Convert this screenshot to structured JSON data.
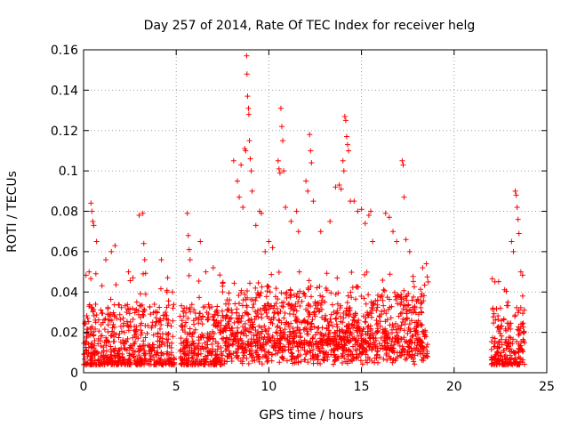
{
  "chart_data": {
    "type": "scatter",
    "title": "Day 257 of 2014, Rate Of TEC Index for receiver helg",
    "xlabel": "GPS time / hours",
    "ylabel": "ROTI / TECUs",
    "xlim": [
      0,
      25
    ],
    "ylim": [
      0,
      0.16
    ],
    "xticks": [
      0,
      5,
      10,
      15,
      20,
      25
    ],
    "yticks": [
      0,
      0.02,
      0.04,
      0.06,
      0.08,
      0.1,
      0.12,
      0.14,
      0.16
    ],
    "ytick_labels": [
      "0",
      "0.02",
      "0.04",
      "0.06",
      "0.08",
      "0.1",
      "0.12",
      "0.14",
      "0.16"
    ],
    "grid": true,
    "marker": "+",
    "marker_color": "#ff0000",
    "segments": [
      {
        "t_start": 0.0,
        "t_end": 4.9
      },
      {
        "t_start": 5.2,
        "t_end": 18.6
      },
      {
        "t_start": 22.0,
        "t_end": 23.8
      }
    ],
    "points": [
      [
        0.4,
        0.084
      ],
      [
        0.45,
        0.08
      ],
      [
        0.5,
        0.075
      ],
      [
        0.55,
        0.073
      ],
      [
        0.3,
        0.05
      ],
      [
        0.7,
        0.065
      ],
      [
        1.2,
        0.056
      ],
      [
        1.5,
        0.06
      ],
      [
        1.7,
        0.063
      ],
      [
        3.0,
        0.078
      ],
      [
        3.2,
        0.079
      ],
      [
        3.25,
        0.064
      ],
      [
        3.3,
        0.056
      ],
      [
        4.2,
        0.056
      ],
      [
        4.5,
        0.04
      ],
      [
        4.8,
        0.04
      ],
      [
        5.6,
        0.079
      ],
      [
        5.65,
        0.068
      ],
      [
        5.7,
        0.061
      ],
      [
        5.75,
        0.056
      ],
      [
        6.3,
        0.065
      ],
      [
        6.6,
        0.05
      ],
      [
        7.0,
        0.052
      ],
      [
        8.1,
        0.105
      ],
      [
        8.3,
        0.095
      ],
      [
        8.4,
        0.087
      ],
      [
        8.5,
        0.103
      ],
      [
        8.6,
        0.082
      ],
      [
        8.7,
        0.111
      ],
      [
        8.75,
        0.11
      ],
      [
        8.8,
        0.157
      ],
      [
        8.82,
        0.148
      ],
      [
        8.85,
        0.137
      ],
      [
        8.9,
        0.131
      ],
      [
        8.92,
        0.128
      ],
      [
        8.95,
        0.115
      ],
      [
        9.0,
        0.106
      ],
      [
        9.05,
        0.1
      ],
      [
        9.1,
        0.09
      ],
      [
        9.3,
        0.073
      ],
      [
        9.5,
        0.08
      ],
      [
        9.6,
        0.079
      ],
      [
        9.8,
        0.06
      ],
      [
        10.0,
        0.065
      ],
      [
        10.2,
        0.062
      ],
      [
        10.5,
        0.105
      ],
      [
        10.55,
        0.101
      ],
      [
        10.6,
        0.099
      ],
      [
        10.65,
        0.131
      ],
      [
        10.7,
        0.122
      ],
      [
        10.75,
        0.115
      ],
      [
        10.8,
        0.1
      ],
      [
        10.9,
        0.082
      ],
      [
        11.2,
        0.075
      ],
      [
        11.5,
        0.08
      ],
      [
        11.6,
        0.07
      ],
      [
        12.0,
        0.095
      ],
      [
        12.1,
        0.09
      ],
      [
        12.2,
        0.118
      ],
      [
        12.25,
        0.11
      ],
      [
        12.3,
        0.104
      ],
      [
        12.4,
        0.085
      ],
      [
        12.8,
        0.07
      ],
      [
        13.3,
        0.075
      ],
      [
        13.6,
        0.092
      ],
      [
        13.8,
        0.093
      ],
      [
        13.9,
        0.091
      ],
      [
        14.0,
        0.105
      ],
      [
        14.05,
        0.1
      ],
      [
        14.1,
        0.127
      ],
      [
        14.15,
        0.125
      ],
      [
        14.2,
        0.117
      ],
      [
        14.25,
        0.113
      ],
      [
        14.3,
        0.11
      ],
      [
        14.4,
        0.085
      ],
      [
        14.6,
        0.085
      ],
      [
        14.8,
        0.08
      ],
      [
        15.0,
        0.081
      ],
      [
        15.2,
        0.074
      ],
      [
        15.4,
        0.078
      ],
      [
        15.5,
        0.08
      ],
      [
        15.6,
        0.065
      ],
      [
        16.3,
        0.079
      ],
      [
        16.5,
        0.077
      ],
      [
        16.7,
        0.07
      ],
      [
        16.9,
        0.065
      ],
      [
        17.2,
        0.105
      ],
      [
        17.25,
        0.103
      ],
      [
        17.3,
        0.087
      ],
      [
        17.4,
        0.066
      ],
      [
        17.6,
        0.06
      ],
      [
        18.3,
        0.052
      ],
      [
        18.5,
        0.054
      ],
      [
        18.6,
        0.045
      ],
      [
        22.2,
        0.045
      ],
      [
        22.5,
        0.032
      ],
      [
        22.9,
        0.035
      ],
      [
        23.1,
        0.065
      ],
      [
        23.2,
        0.06
      ],
      [
        23.3,
        0.09
      ],
      [
        23.35,
        0.088
      ],
      [
        23.4,
        0.082
      ],
      [
        23.45,
        0.076
      ],
      [
        23.5,
        0.069
      ],
      [
        23.6,
        0.05
      ],
      [
        23.7,
        0.038
      ]
    ]
  }
}
